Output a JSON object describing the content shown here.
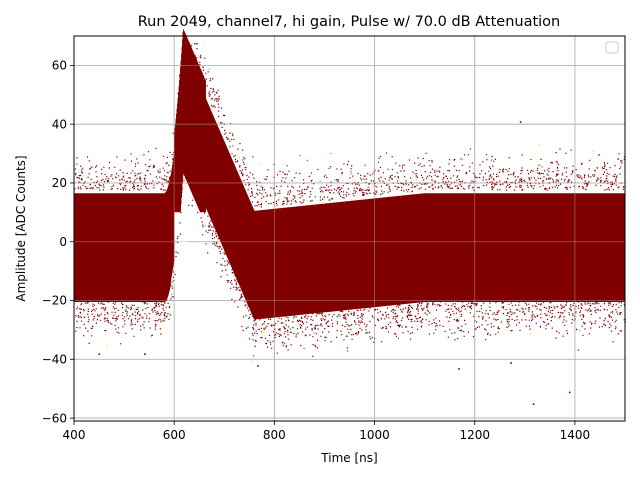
{
  "chart_data": {
    "type": "scatter",
    "title": "Run 2049, channel7, hi gain, Pulse w/ 70.0 dB Attenuation",
    "xlabel": "Time [ns]",
    "ylabel": "Amplitude [ADC Counts]",
    "xlim": [
      400,
      1500
    ],
    "ylim": [
      -61,
      70
    ],
    "xticks": [
      400,
      600,
      800,
      1000,
      1200,
      1400
    ],
    "yticks": [
      -60,
      -40,
      -20,
      0,
      20,
      40,
      60
    ],
    "xtick_labels": [
      "400",
      "600",
      "800",
      "1000",
      "1200",
      "1400"
    ],
    "ytick_labels": [
      "−60",
      "−40",
      "−20",
      "0",
      "20",
      "40",
      "60"
    ],
    "grid": true,
    "legend": {
      "placement": "top-right",
      "entries": []
    },
    "marker_color": "#800000",
    "accent_point_colors": [
      "#00e5ff",
      "#ffd700",
      "#6a5acd",
      "#2e8b57"
    ],
    "baseline": {
      "mean": -1.5,
      "band_half_width": 20,
      "max_excursion": 43
    },
    "pulse": {
      "peak_time": 618,
      "peak_amplitude": 50,
      "rise_start_time": 580,
      "decay_end_time": 760,
      "undershoot_amplitude": -6,
      "undershoot_recovery_time": 1100,
      "peak_max": 56,
      "peak_min_lower_edge": 10
    },
    "outliers": [
      {
        "x": 1316,
        "y": -55
      },
      {
        "x": 1388,
        "y": -51
      },
      {
        "x": 1290,
        "y": 41
      },
      {
        "x": 1167,
        "y": -43
      },
      {
        "x": 540,
        "y": -38
      },
      {
        "x": 449,
        "y": -38
      },
      {
        "x": 766,
        "y": -42
      },
      {
        "x": 1271,
        "y": -41
      }
    ]
  }
}
